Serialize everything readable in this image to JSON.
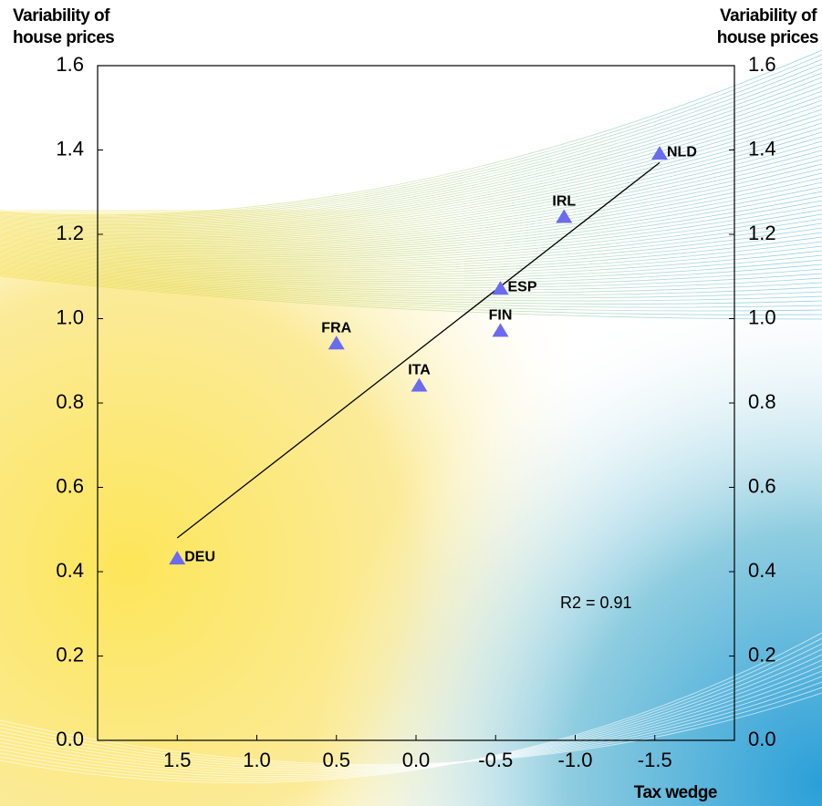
{
  "chart_data": {
    "type": "scatter",
    "y_label": "Variability of house prices",
    "x_label": "Tax wedge",
    "annotation": "R2 =  0.91",
    "point_labels": [
      "DEU",
      "FRA",
      "ITA",
      "ESP",
      "FIN",
      "IRL",
      "NLD"
    ],
    "x": [
      1.5,
      0.5,
      -0.02,
      -0.53,
      -0.53,
      -0.93,
      -1.53
    ],
    "values": [
      0.43,
      0.94,
      0.84,
      1.07,
      0.97,
      1.24,
      1.39
    ],
    "color": "#6b6bf0",
    "trendline": {
      "x": [
        1.5,
        -1.53
      ],
      "y": [
        0.48,
        1.37
      ]
    },
    "xlim": [
      2,
      -2
    ],
    "ylim": [
      0,
      1.6
    ],
    "xticks": [
      1.5,
      {
        "value": 1,
        "label": "1.0"
      },
      0.5,
      {
        "value": 0,
        "label": "0.0"
      },
      -0.5,
      {
        "value": -1,
        "label": "-1.0"
      },
      -1.5
    ],
    "yticks": [
      {
        "value": 0,
        "label": "0.0"
      },
      0.2,
      0.4,
      0.6,
      0.8,
      {
        "value": 1,
        "label": "1.0"
      },
      1.2,
      1.4,
      1.6
    ]
  }
}
